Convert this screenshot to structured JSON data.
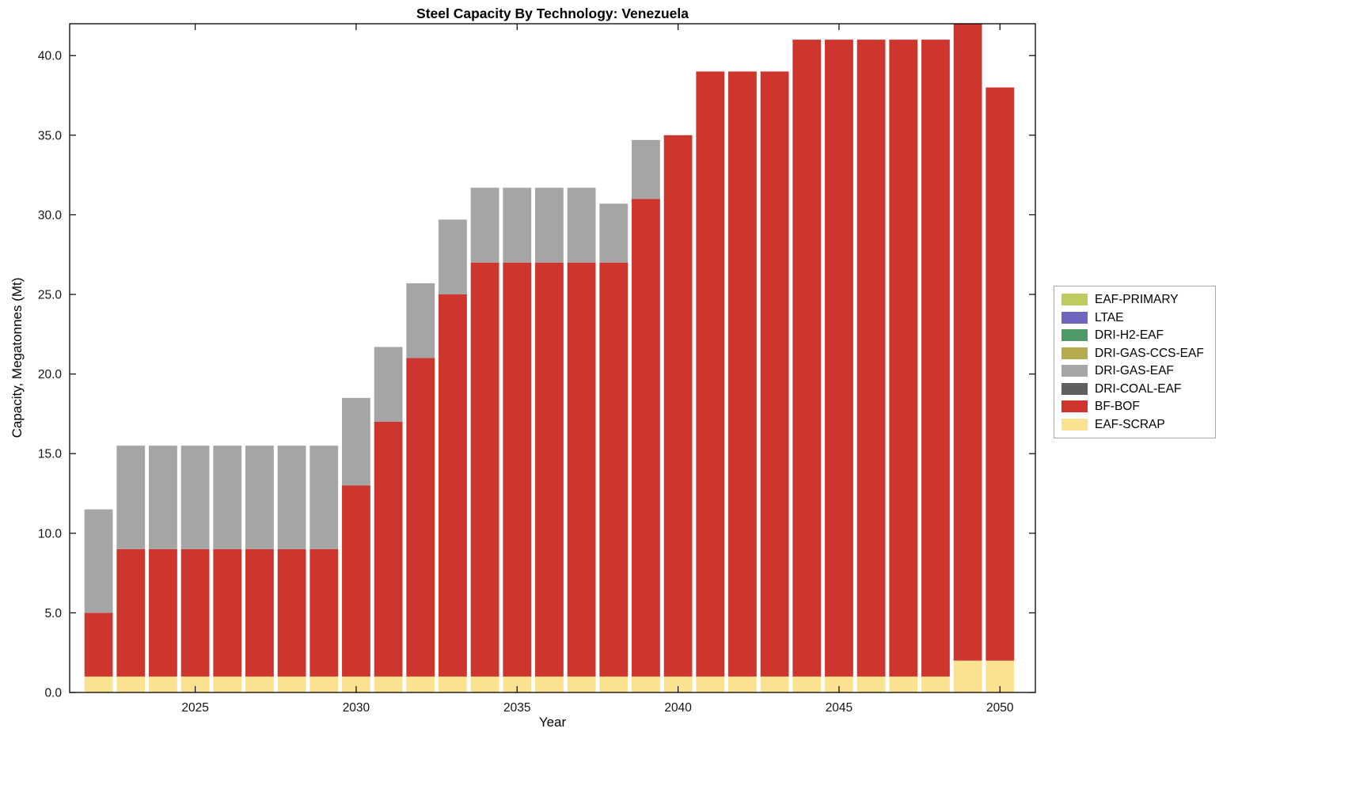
{
  "figure": {
    "background": "#ffffff"
  },
  "chart_data": {
    "type": "bar",
    "stacked": true,
    "title": "Steel Capacity By Technology: Venezuela",
    "xlabel": "Year",
    "ylabel": "Capacity, Megatonnes (Mt)",
    "xlim": [
      2021.1,
      2051.1
    ],
    "ylim": [
      0,
      42
    ],
    "grid": false,
    "legend_position": "right-outside",
    "bar_width_fraction": 0.88,
    "xticks": [
      2025,
      2030,
      2035,
      2040,
      2045,
      2050
    ],
    "xtick_labels": [
      "2025",
      "2030",
      "2035",
      "2040",
      "2045",
      "2050"
    ],
    "yticks": [
      0,
      5,
      10,
      15,
      20,
      25,
      30,
      35,
      40
    ],
    "ytick_labels": [
      "0.0",
      "5.0",
      "10.0",
      "15.0",
      "20.0",
      "25.0",
      "30.0",
      "35.0",
      "40.0"
    ],
    "x": [
      2022,
      2023,
      2024,
      2025,
      2026,
      2027,
      2028,
      2029,
      2030,
      2031,
      2032,
      2033,
      2034,
      2035,
      2036,
      2037,
      2038,
      2039,
      2040,
      2041,
      2042,
      2043,
      2044,
      2045,
      2046,
      2047,
      2048,
      2049,
      2050
    ],
    "series": [
      {
        "name": "EAF-SCRAP",
        "color": "#FBE291",
        "values": [
          1,
          1,
          1,
          1,
          1,
          1,
          1,
          1,
          1,
          1,
          1,
          1,
          1,
          1,
          1,
          1,
          1,
          1,
          1,
          1,
          1,
          1,
          1,
          1,
          1,
          1,
          1,
          2,
          2
        ]
      },
      {
        "name": "BF-BOF",
        "color": "#CE352C",
        "values": [
          4,
          8,
          8,
          8,
          8,
          8,
          8,
          8,
          12,
          16,
          20,
          24,
          26,
          26,
          26,
          26,
          26,
          30,
          34,
          38,
          38,
          38,
          40,
          40,
          40,
          40,
          40,
          40,
          36
        ]
      },
      {
        "name": "DRI-COAL-EAF",
        "color": "#5F5F5F",
        "values": [
          0,
          0,
          0,
          0,
          0,
          0,
          0,
          0,
          0,
          0,
          0,
          0,
          0,
          0,
          0,
          0,
          0,
          0,
          0,
          0,
          0,
          0,
          0,
          0,
          0,
          0,
          0,
          0,
          0
        ]
      },
      {
        "name": "DRI-GAS-EAF",
        "color": "#A5A5A5",
        "values": [
          6.5,
          6.5,
          6.5,
          6.5,
          6.5,
          6.5,
          6.5,
          6.5,
          5.5,
          4.7,
          4.7,
          4.7,
          4.7,
          4.7,
          4.7,
          4.7,
          3.7,
          3.7,
          0,
          0,
          0,
          0,
          0,
          0,
          0,
          0,
          0,
          0,
          0
        ]
      },
      {
        "name": "DRI-GAS-CCS-EAF",
        "color": "#B5AC4D",
        "values": [
          0,
          0,
          0,
          0,
          0,
          0,
          0,
          0,
          0,
          0,
          0,
          0,
          0,
          0,
          0,
          0,
          0,
          0,
          0,
          0,
          0,
          0,
          0,
          0,
          0,
          0,
          0,
          0,
          0
        ]
      },
      {
        "name": "DRI-H2-EAF",
        "color": "#4E9A68",
        "values": [
          0,
          0,
          0,
          0,
          0,
          0,
          0,
          0,
          0,
          0,
          0,
          0,
          0,
          0,
          0,
          0,
          0,
          0,
          0,
          0,
          0,
          0,
          0,
          0,
          0,
          0,
          0,
          0,
          0
        ]
      },
      {
        "name": "LTAE",
        "color": "#7065BF",
        "values": [
          0,
          0,
          0,
          0,
          0,
          0,
          0,
          0,
          0,
          0,
          0,
          0,
          0,
          0,
          0,
          0,
          0,
          0,
          0,
          0,
          0,
          0,
          0,
          0,
          0,
          0,
          0,
          0,
          0
        ]
      },
      {
        "name": "EAF-PRIMARY",
        "color": "#BDCB5F",
        "values": [
          0,
          0,
          0,
          0,
          0,
          0,
          0,
          0,
          0,
          0,
          0,
          0,
          0,
          0,
          0,
          0,
          0,
          0,
          0,
          0,
          0,
          0,
          0,
          0,
          0,
          0,
          0,
          0,
          0
        ]
      }
    ],
    "legend": [
      {
        "label": "EAF-PRIMARY",
        "color": "#BDCB5F"
      },
      {
        "label": "LTAE",
        "color": "#7065BF"
      },
      {
        "label": "DRI-H2-EAF",
        "color": "#4E9A68"
      },
      {
        "label": "DRI-GAS-CCS-EAF",
        "color": "#B5AC4D"
      },
      {
        "label": "DRI-GAS-EAF",
        "color": "#A5A5A5"
      },
      {
        "label": "DRI-COAL-EAF",
        "color": "#5F5F5F"
      },
      {
        "label": "BF-BOF",
        "color": "#CE352C"
      },
      {
        "label": "EAF-SCRAP",
        "color": "#FBE291"
      }
    ]
  }
}
